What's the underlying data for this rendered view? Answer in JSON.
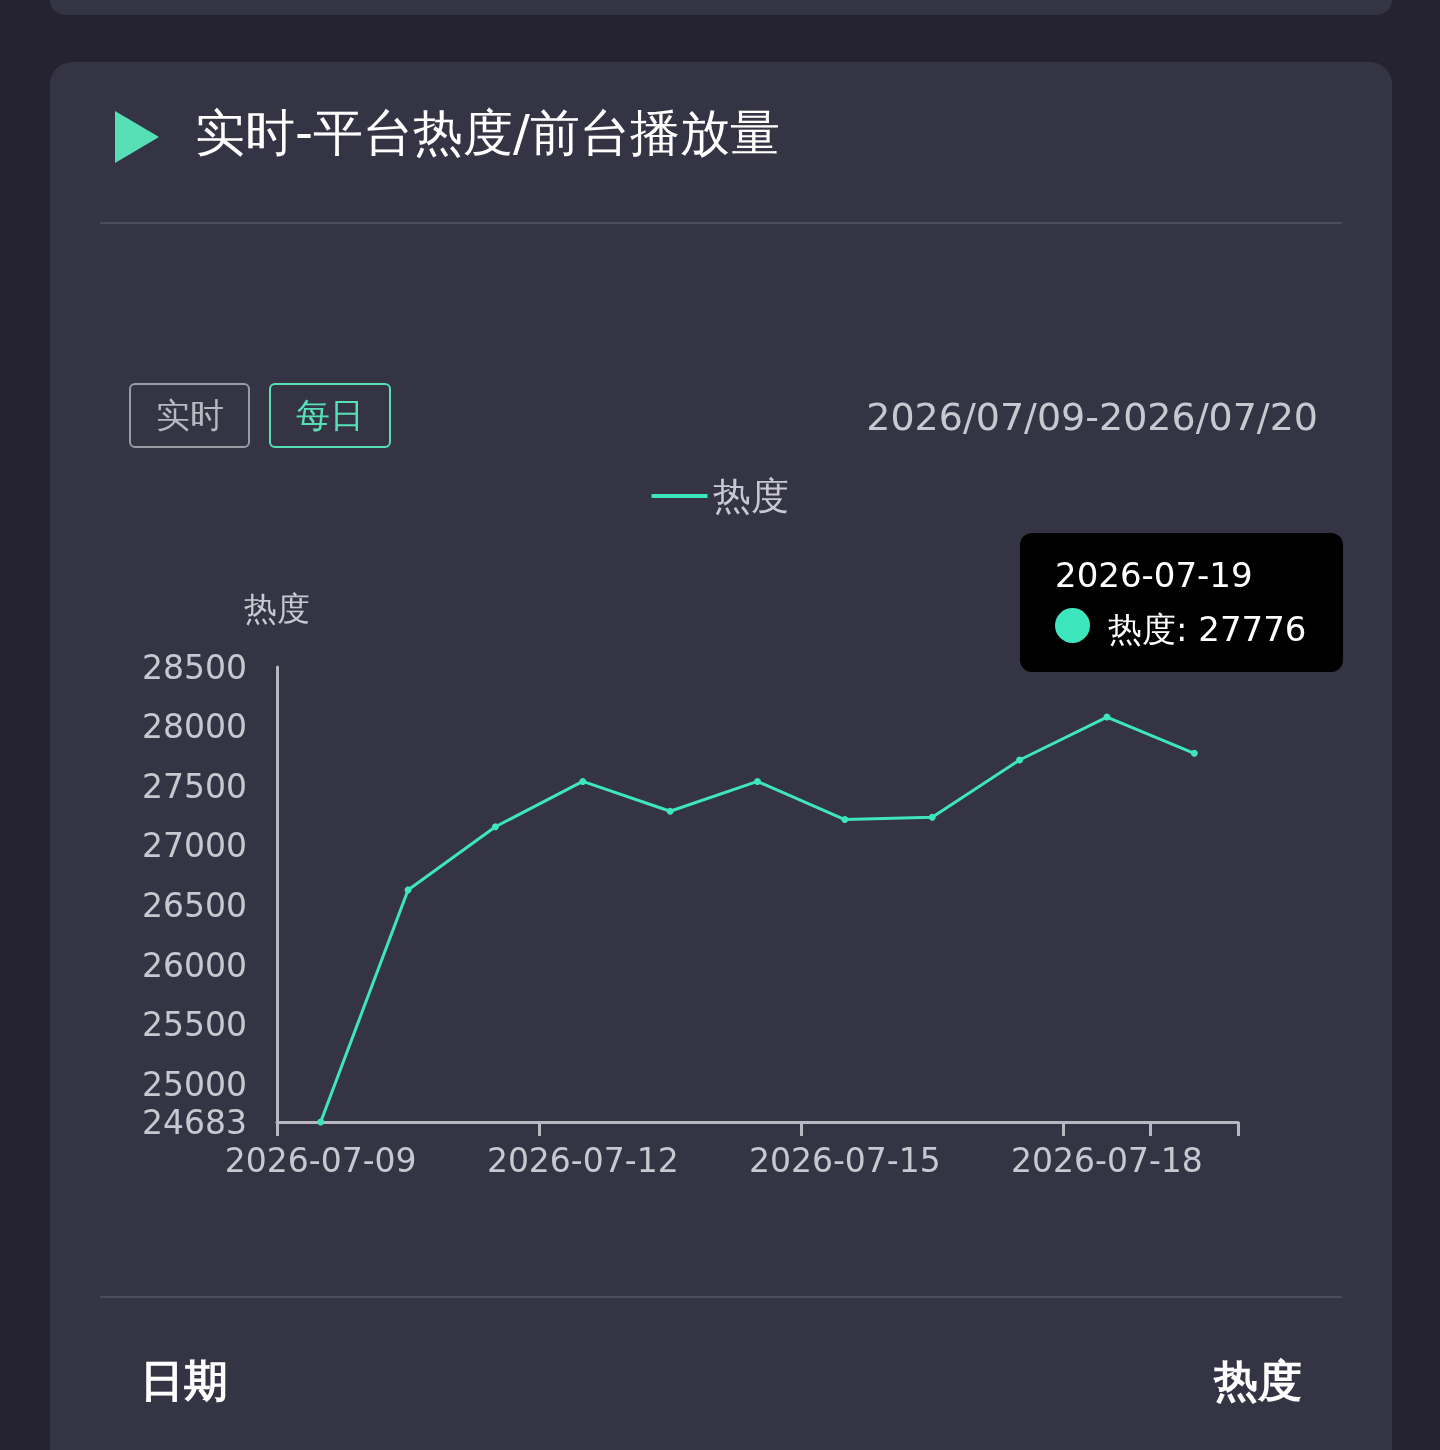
{
  "chart_data": {
    "type": "line",
    "title": "实时-平台热度/前台播放量",
    "ylabel": "热度",
    "annotations": [
      "实时",
      "每日",
      "2026/07/09-2026/07/20",
      "2026-07-19",
      "热度: 27776",
      "日期",
      "热度"
    ],
    "categories": [
      "2026-07-09",
      null,
      null,
      "2026-07-12",
      null,
      null,
      "2026-07-15",
      null,
      null,
      "2026-07-18",
      null
    ],
    "series": [
      {
        "name": "热度",
        "color": "#3ee6be",
        "values": [
          24683,
          26630,
          27160,
          27540,
          27290,
          27540,
          27220,
          27240,
          27720,
          28080,
          27776
        ]
      }
    ],
    "ylim": [
      24683,
      28500
    ],
    "yticks": [
      24683,
      25000,
      25500,
      26000,
      26500,
      27000,
      27500,
      28000,
      28500
    ],
    "grid": false,
    "legend": "top",
    "marker": "circle",
    "line_style": "solid"
  }
}
